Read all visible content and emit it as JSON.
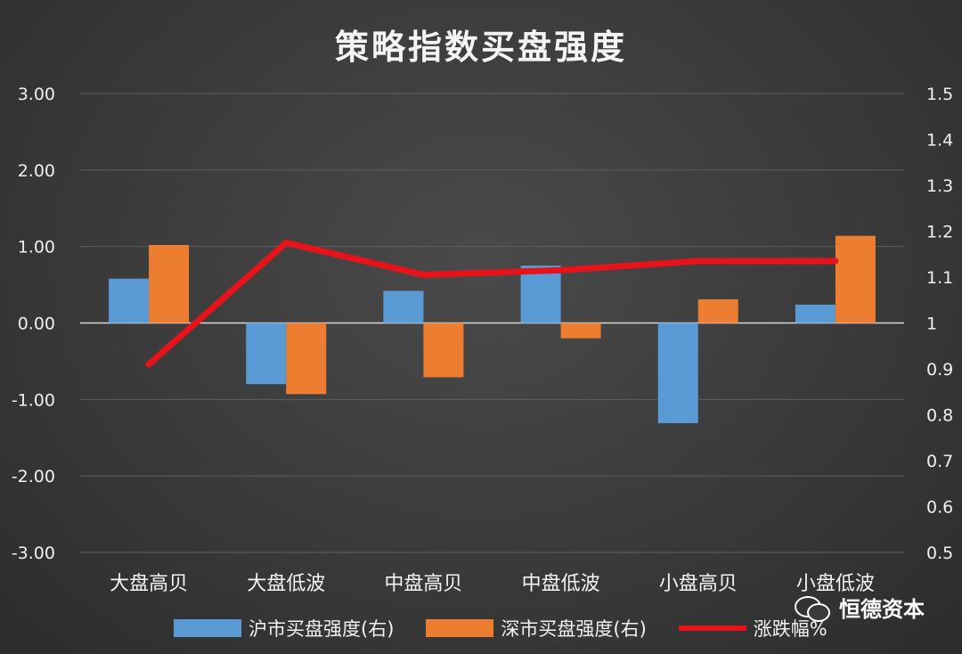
{
  "chart_data": {
    "type": "bar",
    "title": "策略指数买盘强度",
    "categories": [
      "大盘高贝",
      "大盘低波",
      "中盘高贝",
      "中盘低波",
      "小盘高贝",
      "小盘低波"
    ],
    "series": [
      {
        "name": "沪市买盘强度(右)",
        "type": "bar",
        "axis": "left",
        "color": "#5b9bd5",
        "values": [
          0.58,
          -0.8,
          0.42,
          0.75,
          -1.31,
          0.24
        ]
      },
      {
        "name": "深市买盘强度(右)",
        "type": "bar",
        "axis": "left",
        "color": "#ed7d31",
        "values": [
          1.02,
          -0.93,
          -0.71,
          -0.2,
          0.31,
          1.14
        ]
      },
      {
        "name": "涨跌幅%",
        "type": "line",
        "axis": "right",
        "color": "#e8131a",
        "values": [
          0.91,
          1.175,
          1.105,
          1.115,
          1.135,
          1.135
        ]
      }
    ],
    "ylim_left": [
      -3,
      3
    ],
    "yticks_left": [
      "3.00",
      "2.00",
      "1.00",
      "0.00",
      "-1.00",
      "-2.00",
      "-3.00"
    ],
    "ylim_right": [
      0.5,
      1.5
    ],
    "yticks_right": [
      "1.5",
      "1.4",
      "1.3",
      "1.2",
      "1.1",
      "1",
      "0.9",
      "0.8",
      "0.7",
      "0.6",
      "0.5"
    ],
    "grid": true,
    "legend_position": "bottom"
  },
  "watermark": {
    "text": "恒德资本",
    "icon": "wechat-icon"
  }
}
